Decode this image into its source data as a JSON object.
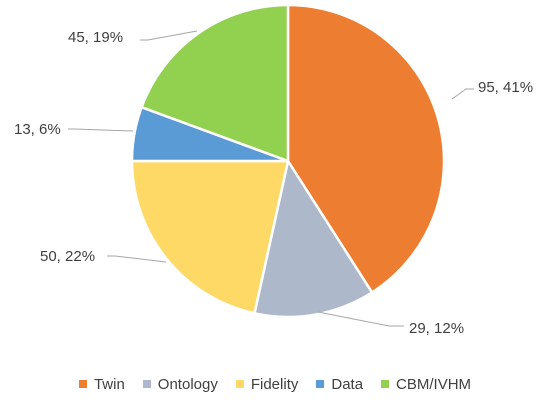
{
  "chart_data": {
    "type": "pie",
    "title": "",
    "categories": [
      "Twin",
      "Ontology",
      "Fidelity",
      "Data",
      "CBM/IVHM"
    ],
    "values": [
      95,
      29,
      50,
      13,
      45
    ],
    "percent_labels": [
      "41%",
      "12%",
      "22%",
      "6%",
      "19%"
    ],
    "data_labels": [
      "95, 41%",
      "29, 12%",
      "50, 22%",
      "13, 6%",
      "45, 19%"
    ],
    "colors": [
      "#ed7d31",
      "#adb9ca",
      "#ffd966",
      "#5b9bd5",
      "#92d050"
    ],
    "legend_position": "bottom",
    "start_angle": "top",
    "direction": "clockwise"
  }
}
